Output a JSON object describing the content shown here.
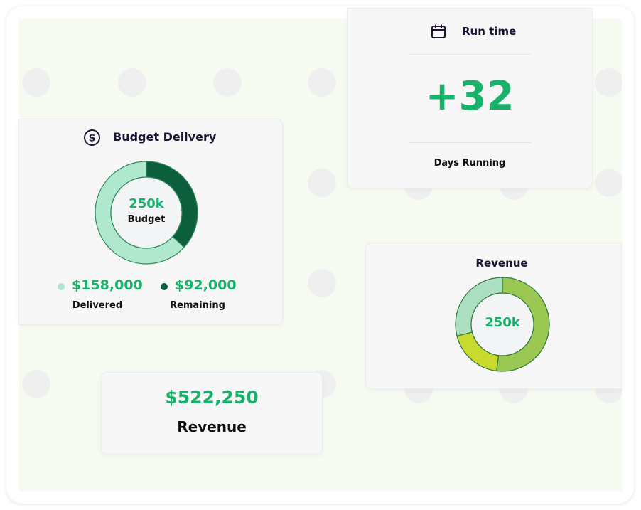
{
  "budget": {
    "title": "Budget Delivery",
    "icon": "dollar-circle-icon",
    "center_value": "250k",
    "center_label": "Budget",
    "delivered_value": "$158,000",
    "delivered_label": "Delivered",
    "remaining_value": "$92,000",
    "remaining_label": "Remaining",
    "delivered_color": "#b0e7cf",
    "remaining_color": "#0c5e3c",
    "delivered_amount": 158000,
    "remaining_amount": 92000
  },
  "runtime": {
    "title": "Run time",
    "icon": "calendar-icon",
    "value": "+32",
    "label": "Days Running"
  },
  "revenue_chart": {
    "title": "Revenue",
    "center_value": "250k",
    "segments": [
      {
        "color": "#9bc852",
        "share": 0.52
      },
      {
        "color": "#c9da2e",
        "share": 0.19
      },
      {
        "color": "#acdfc2",
        "share": 0.29
      }
    ]
  },
  "revenue_card": {
    "value": "$522,250",
    "label": "Revenue"
  }
}
